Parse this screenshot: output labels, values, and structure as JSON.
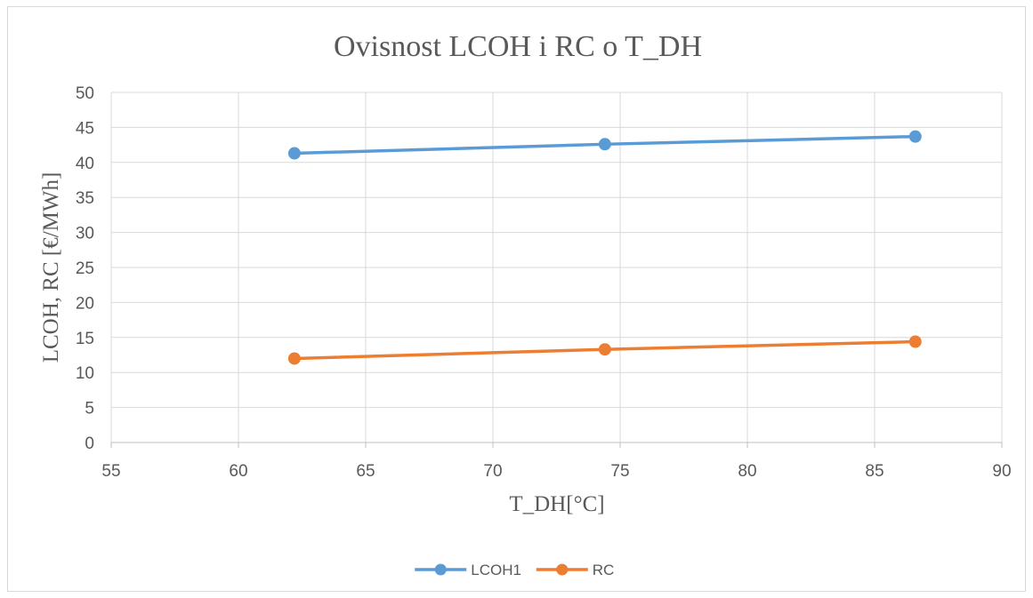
{
  "chart_data": {
    "type": "line",
    "title": "Ovisnost LCOH i RC o T_DH",
    "xlabel": "T_DH[°C]",
    "ylabel": "LCOH, RC [€/MWh]",
    "xlim": [
      55,
      90
    ],
    "ylim": [
      0,
      50
    ],
    "x_ticks": [
      55,
      60,
      65,
      70,
      75,
      80,
      85,
      90
    ],
    "y_ticks": [
      0,
      5,
      10,
      15,
      20,
      25,
      30,
      35,
      40,
      45,
      50
    ],
    "grid": true,
    "legend_position": "bottom",
    "series": [
      {
        "name": "LCOH1",
        "color": "#5b9bd5",
        "x": [
          62.2,
          74.4,
          86.6
        ],
        "y": [
          41.3,
          42.6,
          43.7
        ]
      },
      {
        "name": "RC",
        "color": "#ed7d31",
        "x": [
          62.2,
          74.4,
          86.6
        ],
        "y": [
          12.0,
          13.3,
          14.4
        ]
      }
    ]
  }
}
